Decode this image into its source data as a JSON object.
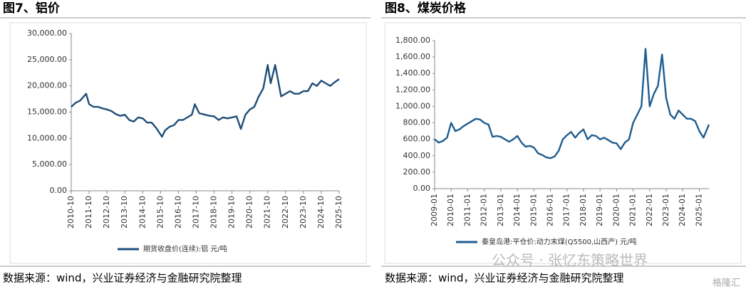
{
  "chart_data": [
    {
      "type": "line",
      "title": "图7、铝价",
      "source": "数据来源：wind，兴业证券经济与金融研究院整理",
      "x": [
        "2010-10",
        "2011-01",
        "2011-04",
        "2011-08",
        "2011-10",
        "2012-01",
        "2012-04",
        "2012-07",
        "2012-10",
        "2013-01",
        "2013-04",
        "2013-07",
        "2013-10",
        "2014-01",
        "2014-04",
        "2014-07",
        "2014-10",
        "2015-01",
        "2015-04",
        "2015-07",
        "2015-11",
        "2016-01",
        "2016-04",
        "2016-07",
        "2016-10",
        "2017-01",
        "2017-04",
        "2017-07",
        "2017-09",
        "2017-12",
        "2018-04",
        "2018-07",
        "2018-10",
        "2019-01",
        "2019-04",
        "2019-07",
        "2019-10",
        "2020-01",
        "2020-04",
        "2020-07",
        "2020-10",
        "2021-01",
        "2021-04",
        "2021-07",
        "2021-10",
        "2021-12",
        "2022-03",
        "2022-05",
        "2022-07",
        "2022-10",
        "2023-01",
        "2023-04",
        "2023-07",
        "2023-10",
        "2024-01",
        "2024-04",
        "2024-07",
        "2024-10",
        "2025-01",
        "2025-04",
        "2025-07",
        "2025-10"
      ],
      "series": [
        {
          "name": "期货收盘价(连续):铝  元/吨",
          "color": "#1f4e79",
          "values": [
            16000,
            16800,
            17200,
            18500,
            16500,
            16000,
            16000,
            15700,
            15500,
            15200,
            14600,
            14300,
            14500,
            13500,
            13200,
            14000,
            13800,
            13000,
            13000,
            12000,
            10300,
            11500,
            12200,
            12500,
            13500,
            13500,
            14000,
            14500,
            16500,
            14800,
            14500,
            14300,
            14200,
            13500,
            14000,
            13800,
            14000,
            14200,
            11800,
            14500,
            15500,
            16000,
            18000,
            19500,
            24000,
            20500,
            24000,
            21000,
            18000,
            18500,
            19000,
            18500,
            18500,
            19000,
            19000,
            20500,
            20000,
            21000,
            20500,
            20000,
            20700,
            21300
          ]
        }
      ],
      "xlim": [
        "2010-10",
        "2025-10"
      ],
      "xticks": [
        "2010-10",
        "2011-10",
        "2012-10",
        "2013-10",
        "2014-10",
        "2015-10",
        "2016-10",
        "2017-10",
        "2018-10",
        "2019-10",
        "2020-10",
        "2021-10",
        "2022-10",
        "2023-10",
        "2024-10",
        "2025-10"
      ],
      "ylim": [
        0,
        30000
      ],
      "yticks": [
        {
          "value": 0,
          "label": "0.00"
        },
        {
          "value": 5000,
          "label": "5,000.00"
        },
        {
          "value": 10000,
          "label": "10,000.00"
        },
        {
          "value": 15000,
          "label": "15,000.00"
        },
        {
          "value": 20000,
          "label": "20,000.00"
        },
        {
          "value": 25000,
          "label": "25,000.00"
        },
        {
          "value": 30000,
          "label": "30,000.00"
        }
      ]
    },
    {
      "type": "line",
      "title": "图8、煤炭价格",
      "source": "数据来源：wind，兴业证券经济与金融研究院整理",
      "x": [
        "2009-01",
        "2009-04",
        "2009-07",
        "2009-10",
        "2010-01",
        "2010-04",
        "2010-07",
        "2010-10",
        "2011-01",
        "2011-04",
        "2011-07",
        "2011-10",
        "2012-01",
        "2012-04",
        "2012-07",
        "2012-10",
        "2013-01",
        "2013-04",
        "2013-07",
        "2013-10",
        "2014-01",
        "2014-04",
        "2014-07",
        "2014-10",
        "2015-01",
        "2015-04",
        "2015-07",
        "2015-10",
        "2016-01",
        "2016-04",
        "2016-07",
        "2016-10",
        "2017-01",
        "2017-04",
        "2017-07",
        "2017-10",
        "2018-01",
        "2018-04",
        "2018-07",
        "2018-10",
        "2019-01",
        "2019-04",
        "2019-07",
        "2019-10",
        "2020-01",
        "2020-04",
        "2020-07",
        "2020-10",
        "2021-01",
        "2021-04",
        "2021-07",
        "2021-10",
        "2022-01",
        "2022-04",
        "2022-07",
        "2022-10",
        "2023-01",
        "2023-04",
        "2023-07",
        "2023-10",
        "2024-01",
        "2024-04",
        "2024-07",
        "2024-10",
        "2025-01",
        "2025-04",
        "2025-08"
      ],
      "series": [
        {
          "name": "秦皇岛港:平仓价:动力末煤(Q5500,山西产)  元/吨",
          "color": "#1f5d8f",
          "values": [
            600,
            560,
            580,
            620,
            800,
            700,
            720,
            760,
            790,
            820,
            850,
            840,
            800,
            780,
            630,
            640,
            630,
            600,
            570,
            600,
            640,
            560,
            510,
            520,
            500,
            430,
            410,
            380,
            370,
            390,
            460,
            600,
            650,
            690,
            620,
            680,
            720,
            600,
            650,
            640,
            600,
            620,
            590,
            560,
            550,
            480,
            560,
            600,
            800,
            900,
            1000,
            1700,
            1000,
            1150,
            1250,
            1630,
            1100,
            900,
            850,
            950,
            900,
            850,
            850,
            820,
            700,
            620,
            780
          ]
        }
      ],
      "xlim": [
        "2009-01",
        "2025-08"
      ],
      "xticks": [
        "2009-01",
        "2010-01",
        "2011-01",
        "2012-01",
        "2013-01",
        "2014-01",
        "2015-01",
        "2016-01",
        "2017-01",
        "2018-01",
        "2019-01",
        "2020-01",
        "2021-01",
        "2022-01",
        "2023-01",
        "2024-01",
        "2025-01"
      ],
      "ylim": [
        0,
        1800
      ],
      "yticks": [
        {
          "value": 0,
          "label": "0.00"
        },
        {
          "value": 200,
          "label": "200.00"
        },
        {
          "value": 400,
          "label": "400.00"
        },
        {
          "value": 600,
          "label": "600.00"
        },
        {
          "value": 800,
          "label": "800.00"
        },
        {
          "value": 1000,
          "label": "1,000.00"
        },
        {
          "value": 1200,
          "label": "1,200.00"
        },
        {
          "value": 1400,
          "label": "1,400.00"
        },
        {
          "value": 1600,
          "label": "1,600.00"
        },
        {
          "value": 1800,
          "label": "1,800.00"
        }
      ]
    }
  ],
  "watermark": "公众号 · 张忆东策略世界",
  "logo": "格隆汇"
}
